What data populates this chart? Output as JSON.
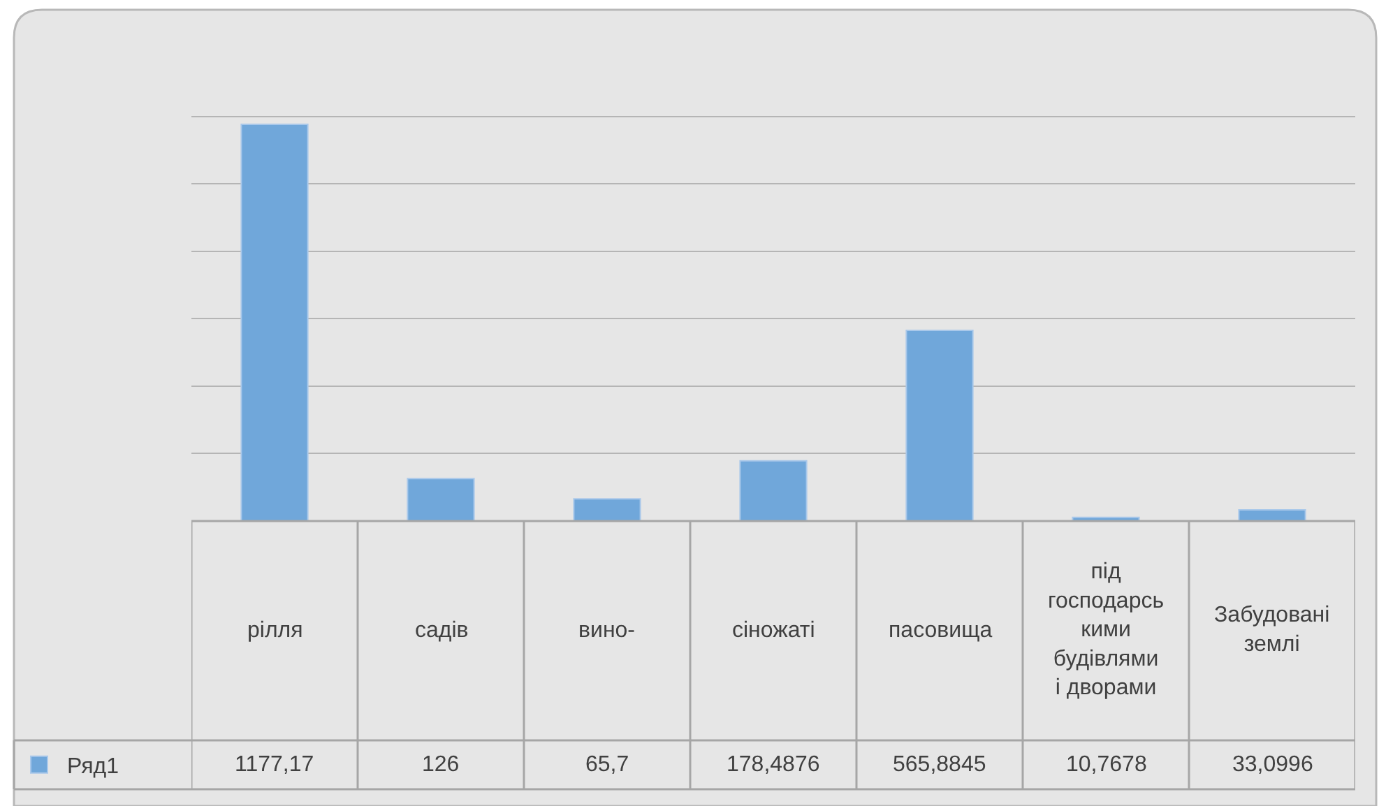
{
  "chart_data": {
    "type": "bar",
    "categories": [
      "рілля",
      "садів",
      "вино-",
      "сіножаті",
      "пасовища",
      "під господарськими будівлями і дворами",
      "Забудовані землі"
    ],
    "series": [
      {
        "name": "Ряд1",
        "color": "#70a7da",
        "values": [
          1177.17,
          126,
          65.7,
          178.4876,
          565.8845,
          10.7678,
          33.0996
        ],
        "value_labels": [
          "1177,17",
          "126",
          "65,7",
          "178,4876",
          "565,8845",
          "10,7678",
          "33,0996"
        ]
      }
    ],
    "grid": "y",
    "tick_labels": "x",
    "legend": "bottom left"
  }
}
